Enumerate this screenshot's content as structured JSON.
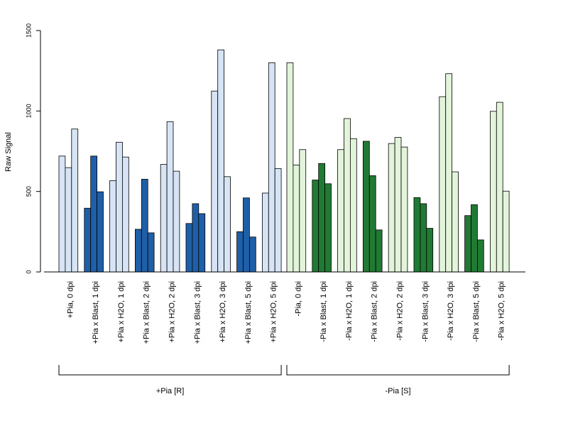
{
  "chart_data": {
    "type": "bar",
    "ylabel": "Raw Signal",
    "xlabel": "",
    "ylim": [
      0,
      1500
    ],
    "yticks": [
      0,
      500,
      1000,
      1500
    ],
    "grid": false,
    "legend": "none",
    "bar_colors": {
      "light_blue": "#d6e4f5",
      "dark_blue": "#1f5fa8",
      "light_green": "#e2f4da",
      "dark_green": "#217a34"
    },
    "categories": [
      {
        "label": "+Pia, 0 dpi",
        "values": [
          720,
          648,
          888
        ],
        "color": "#d6e4f5"
      },
      {
        "label": "+Pia x Blast, 1 dpi",
        "values": [
          396,
          720,
          498
        ],
        "color": "#1f5fa8"
      },
      {
        "label": "+Pia x H2O, 1 dpi",
        "values": [
          567,
          806,
          714
        ],
        "color": "#d6e4f5"
      },
      {
        "label": "+Pia x Blast, 2 dpi",
        "values": [
          265,
          576,
          243
        ],
        "color": "#1f5fa8"
      },
      {
        "label": "+Pia x H2O, 2 dpi",
        "values": [
          668,
          934,
          626
        ],
        "color": "#d6e4f5"
      },
      {
        "label": "+Pia x Blast, 3 dpi",
        "values": [
          301,
          424,
          362
        ],
        "color": "#1f5fa8"
      },
      {
        "label": "+Pia x H2O, 3 dpi",
        "values": [
          1124,
          1380,
          592
        ],
        "color": "#d6e4f5"
      },
      {
        "label": "+Pia x Blast, 5 dpi",
        "values": [
          250,
          460,
          217
        ],
        "color": "#1f5fa8"
      },
      {
        "label": "+Pia x H2O, 5 dpi",
        "values": [
          490,
          1300,
          642
        ],
        "color": "#d6e4f5"
      },
      {
        "label": "-Pia, 0 dpi",
        "values": [
          1300,
          664,
          760
        ],
        "color": "#e2f4da"
      },
      {
        "label": "-Pia x Blast, 1 dpi",
        "values": [
          571,
          674,
          548
        ],
        "color": "#217a34"
      },
      {
        "label": "-Pia x H2O, 1 dpi",
        "values": [
          760,
          953,
          828
        ],
        "color": "#e2f4da"
      },
      {
        "label": "-Pia x Blast, 2 dpi",
        "values": [
          812,
          598,
          261
        ],
        "color": "#217a34"
      },
      {
        "label": "-Pia x H2O, 2 dpi",
        "values": [
          798,
          836,
          776
        ],
        "color": "#e2f4da"
      },
      {
        "label": "-Pia x Blast, 3 dpi",
        "values": [
          462,
          424,
          271
        ],
        "color": "#217a34"
      },
      {
        "label": "-Pia x H2O, 3 dpi",
        "values": [
          1089,
          1232,
          622
        ],
        "color": "#e2f4da"
      },
      {
        "label": "-Pia x Blast, 5 dpi",
        "values": [
          350,
          418,
          199
        ],
        "color": "#217a34"
      },
      {
        "label": "-Pia x H2O, 5 dpi",
        "values": [
          998,
          1054,
          502
        ],
        "color": "#e2f4da"
      }
    ],
    "groups": [
      {
        "label": "+Pia [R]",
        "from": 0,
        "to": 8
      },
      {
        "label": "-Pia [S]",
        "from": 9,
        "to": 17
      }
    ]
  }
}
